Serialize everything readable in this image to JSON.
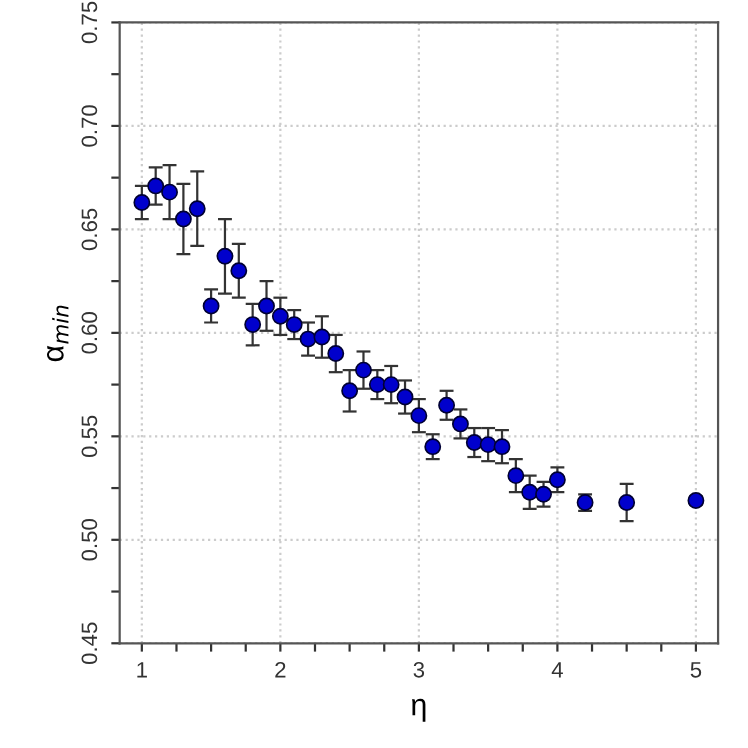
{
  "chart_data": {
    "type": "scatter",
    "xlabel": "η",
    "ylabel": "α$_{min}$",
    "x": [
      1.0,
      1.1,
      1.2,
      1.3,
      1.4,
      1.5,
      1.6,
      1.7,
      1.8,
      1.9,
      2.0,
      2.1,
      2.2,
      2.3,
      2.4,
      2.5,
      2.6,
      2.7,
      2.8,
      2.9,
      3.0,
      3.1,
      3.2,
      3.3,
      3.4,
      3.5,
      3.6,
      3.7,
      3.8,
      3.9,
      4.0,
      4.2,
      4.5,
      5.0
    ],
    "series": [
      {
        "color": "#0000cc",
        "values": [
          0.663,
          0.671,
          0.668,
          0.655,
          0.66,
          0.613,
          0.637,
          0.63,
          0.604,
          0.613,
          0.608,
          0.604,
          0.597,
          0.598,
          0.59,
          0.572,
          0.582,
          0.575,
          0.575,
          0.569,
          0.56,
          0.545,
          0.565,
          0.556,
          0.547,
          0.546,
          0.545,
          0.531,
          0.523,
          0.522,
          0.529,
          0.518,
          0.518,
          0.519
        ],
        "errors": [
          0.008,
          0.009,
          0.013,
          0.017,
          0.018,
          0.008,
          0.018,
          0.013,
          0.01,
          0.012,
          0.009,
          0.007,
          0.008,
          0.01,
          0.009,
          0.01,
          0.009,
          0.007,
          0.009,
          0.008,
          0.008,
          0.006,
          0.007,
          0.007,
          0.007,
          0.008,
          0.008,
          0.008,
          0.008,
          0.006,
          0.006,
          0.004,
          0.009,
          0.002
        ]
      }
    ],
    "xlim": [
      0.84,
      5.16
    ],
    "ylim": [
      0.45,
      0.75
    ],
    "xticks": [
      1,
      {
        "value": 1.25,
        "label": null
      },
      {
        "value": 1.5,
        "label": null
      },
      {
        "value": 1.75,
        "label": null
      },
      2,
      {
        "value": 2.25,
        "label": null
      },
      {
        "value": 2.5,
        "label": null
      },
      {
        "value": 2.75,
        "label": null
      },
      3,
      {
        "value": 3.25,
        "label": null
      },
      {
        "value": 3.5,
        "label": null
      },
      {
        "value": 3.75,
        "label": null
      },
      4,
      {
        "value": 4.25,
        "label": null
      },
      {
        "value": 4.5,
        "label": null
      },
      {
        "value": 4.75,
        "label": null
      },
      5
    ],
    "yticks": [
      {
        "value": 0.45,
        "label": "0.45"
      },
      {
        "value": 0.475,
        "label": null
      },
      {
        "value": 0.5,
        "label": "0.50"
      },
      {
        "value": 0.525,
        "label": null
      },
      {
        "value": 0.55,
        "label": "0.55"
      },
      {
        "value": 0.575,
        "label": null
      },
      {
        "value": 0.6,
        "label": "0.60"
      },
      {
        "value": 0.625,
        "label": null
      },
      {
        "value": 0.65,
        "label": "0.65"
      },
      {
        "value": 0.675,
        "label": null
      },
      {
        "value": 0.7,
        "label": "0.70"
      },
      {
        "value": 0.725,
        "label": null
      },
      {
        "value": 0.75,
        "label": "0.75"
      }
    ],
    "grid": true,
    "marker": "circle"
  }
}
